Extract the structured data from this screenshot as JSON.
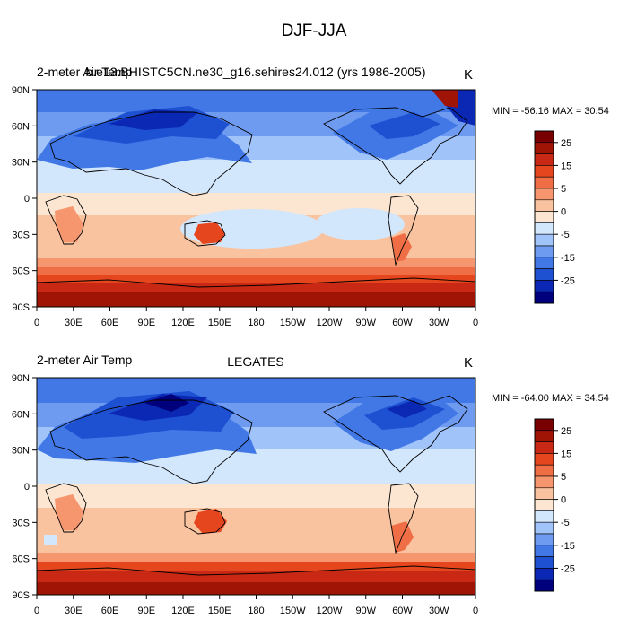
{
  "figure": {
    "title": "DJF-JJA"
  },
  "palette": [
    "#00007d",
    "#0a28b4",
    "#1e50d2",
    "#4178e6",
    "#6e9bf0",
    "#a0c3fa",
    "#d2e6fc",
    "#fce6d2",
    "#fac3a0",
    "#f5966e",
    "#f06e46",
    "#e6461e",
    "#c82814",
    "#a01405",
    "#780000"
  ],
  "colorbar_labels": [
    "25",
    "15",
    "5",
    "0",
    "-5",
    "-15",
    "-25"
  ],
  "axes": {
    "lat_labels": [
      "90N",
      "60N",
      "30N",
      "0",
      "30S",
      "60S",
      "90S"
    ],
    "lon_labels": [
      "0",
      "30E",
      "60E",
      "90E",
      "120E",
      "150E",
      "180",
      "150W",
      "120W",
      "90W",
      "60W",
      "30W",
      "0"
    ]
  },
  "panels": [
    {
      "left_title": "2-meter Air Temp",
      "center_title": "b.e13.BHISTC5CN.ne30_g16.sehires24.012 (yrs 1986-2005)",
      "units": "K",
      "stats": "MIN = -56.16 MAX =  30.54"
    },
    {
      "left_title": "2-meter Air Temp",
      "center_title": "LEGATES",
      "units": "K",
      "stats": "MIN = -64.00 MAX =  34.54"
    }
  ]
}
